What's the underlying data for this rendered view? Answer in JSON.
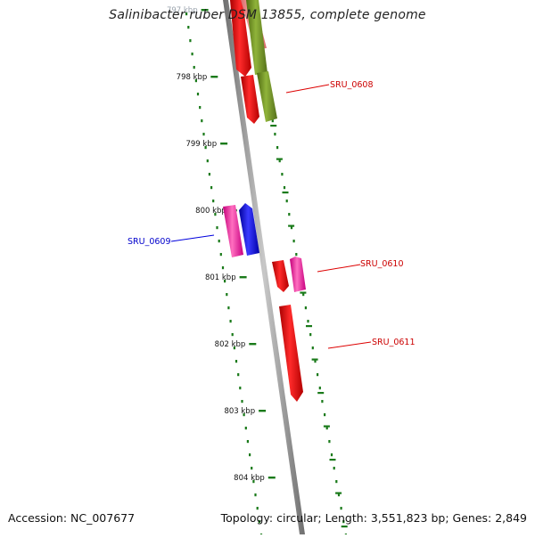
{
  "title": "Salinibacter ruber DSM 13855, complete genome",
  "accession": "Accession: NC_007677",
  "summary": "Topology: circular; Length: 3,551,823 bp; Genes: 2,849",
  "ticks": [
    {
      "label": "797 kbp",
      "kbp": 797
    },
    {
      "label": "798 kbp",
      "kbp": 798
    },
    {
      "label": "799 kbp",
      "kbp": 799
    },
    {
      "label": "800 kbp",
      "kbp": 800
    },
    {
      "label": "801 kbp",
      "kbp": 801
    },
    {
      "label": "802 kbp",
      "kbp": 802
    },
    {
      "label": "803 kbp",
      "kbp": 803
    },
    {
      "label": "804 kbp",
      "kbp": 804
    }
  ],
  "genes": [
    {
      "label": "SRU_0608",
      "color": "#cc0000"
    },
    {
      "label": "SRU_0609",
      "color": "#0000cc"
    },
    {
      "label": "SRU_0610",
      "color": "#cc0000"
    },
    {
      "label": "SRU_0611",
      "color": "#cc0000"
    }
  ],
  "colors": {
    "backbone": "#8a8a8a",
    "tick": "#1a7a1a",
    "red": "#ff0000",
    "pink": "#ff4faa",
    "blue": "#0000ff",
    "olive": "#6b8e23",
    "salmon": "#f08080"
  }
}
